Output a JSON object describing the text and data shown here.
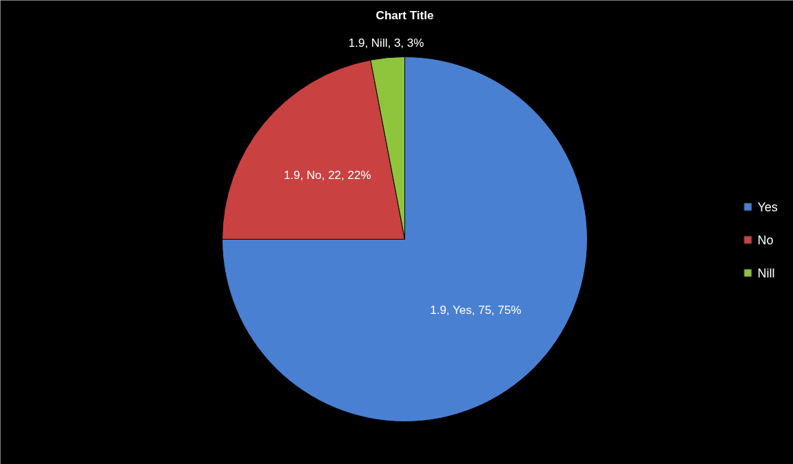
{
  "chart_data": {
    "type": "pie",
    "title": "Chart Title",
    "categories": [
      "Yes",
      "No",
      "Nill"
    ],
    "values": [
      75,
      22,
      3
    ],
    "colors": [
      "#4a80d2",
      "#c94141",
      "#8fc43d"
    ],
    "value_labels": [
      "1.9, Yes, 75, 75%",
      "1.9, No, 22, 22%",
      "1.9, Nill, 3, 3%"
    ],
    "legend": "right"
  }
}
